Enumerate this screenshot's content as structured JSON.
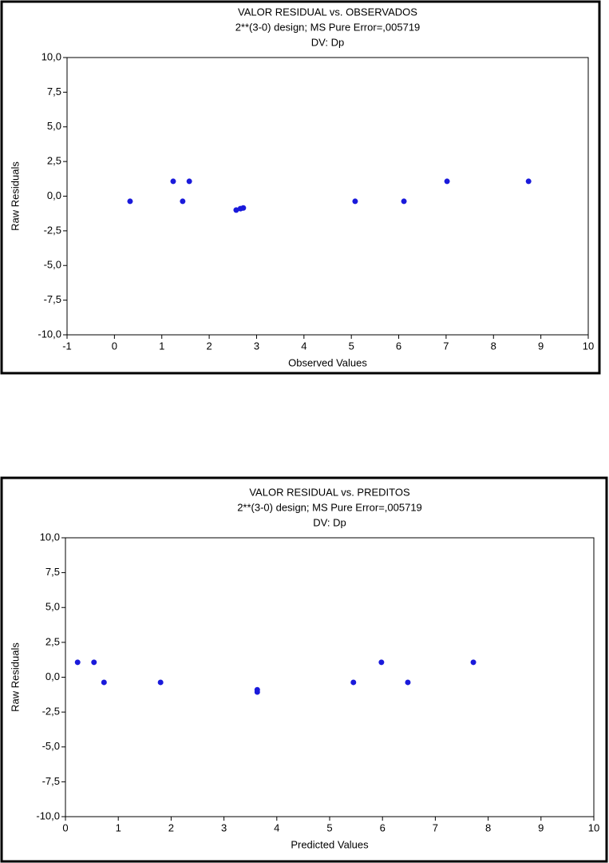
{
  "chart_data": [
    {
      "type": "scatter",
      "title": "VALOR RESIDUAL vs. OBSERVADOS",
      "subtitle": [
        "2**(3-0) design; MS Pure Error=,005719",
        "DV: Dp"
      ],
      "xlabel": "Observed Values",
      "ylabel": "Raw Residuals",
      "color": "#1a1adb",
      "x": [
        0.33,
        1.24,
        1.44,
        1.58,
        2.57,
        2.66,
        2.72,
        5.08,
        6.11,
        7.02,
        8.74
      ],
      "values": [
        -0.37,
        1.07,
        -0.37,
        1.07,
        -1.0,
        -0.9,
        -0.85,
        -0.37,
        -0.37,
        1.07,
        1.07
      ],
      "xlim": [
        -1,
        10
      ],
      "xticks": [
        -1,
        0,
        1,
        2,
        3,
        4,
        5,
        6,
        7,
        8,
        9,
        10
      ],
      "ylim": [
        -10,
        10
      ],
      "yticks": [
        {
          "value": -10,
          "label": "-10,0"
        },
        {
          "value": -7.5,
          "label": "-7,5"
        },
        {
          "value": -5,
          "label": "-5,0"
        },
        {
          "value": -2.5,
          "label": "-2,5"
        },
        {
          "value": 0,
          "label": "0,0"
        },
        {
          "value": 2.5,
          "label": "2,5"
        },
        {
          "value": 5,
          "label": "5,0"
        },
        {
          "value": 7.5,
          "label": "7,5"
        },
        {
          "value": 10,
          "label": "10,0"
        }
      ]
    },
    {
      "type": "scatter",
      "title": "VALOR RESIDUAL vs. PREDITOS",
      "subtitle": [
        "2**(3-0) design; MS Pure Error=,005719",
        "DV: Dp"
      ],
      "xlabel": "Predicted Values",
      "ylabel": "Raw Residuals",
      "color": "#1a1adb",
      "x": [
        0.23,
        0.54,
        0.73,
        1.8,
        3.63,
        3.63,
        5.45,
        5.98,
        6.48,
        7.72
      ],
      "values": [
        1.07,
        1.07,
        -0.37,
        -0.37,
        -1.06,
        -0.9,
        -0.37,
        1.07,
        -0.37,
        1.07
      ],
      "xlim": [
        0,
        10
      ],
      "xticks": [
        0,
        1,
        2,
        3,
        4,
        5,
        6,
        7,
        8,
        9,
        10
      ],
      "ylim": [
        -10,
        10
      ],
      "yticks": [
        {
          "value": -10,
          "label": "-10,0"
        },
        {
          "value": -7.5,
          "label": "-7,5"
        },
        {
          "value": -5,
          "label": "-5,0"
        },
        {
          "value": -2.5,
          "label": "-2,5"
        },
        {
          "value": 0,
          "label": "0,0"
        },
        {
          "value": 2.5,
          "label": "2,5"
        },
        {
          "value": 5,
          "label": "5,0"
        },
        {
          "value": 7.5,
          "label": "7,5"
        },
        {
          "value": 10,
          "label": "10,0"
        }
      ]
    }
  ]
}
